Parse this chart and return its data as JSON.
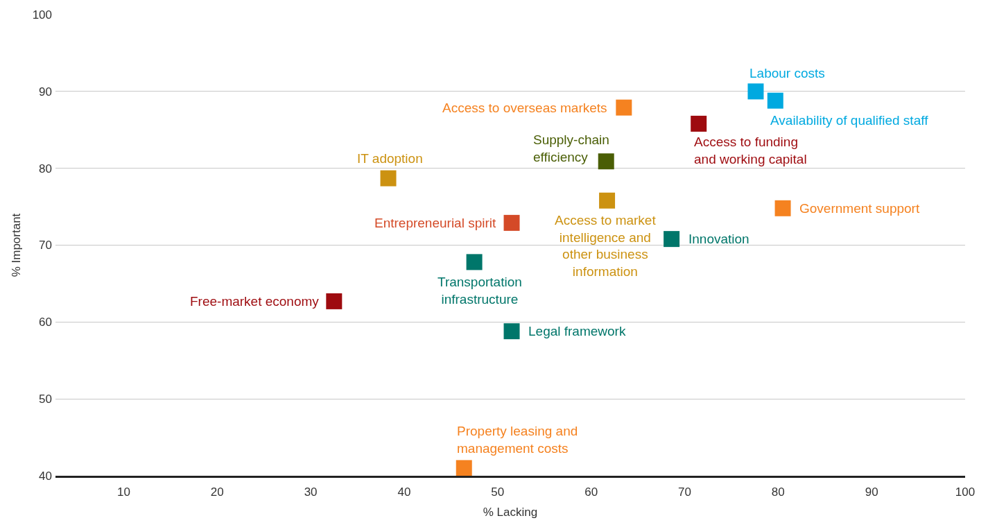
{
  "chart_data": {
    "type": "scatter",
    "xlabel": "% Lacking",
    "ylabel": "% Important",
    "xlim": [
      2.7,
      100
    ],
    "xticks": [
      10,
      20,
      30,
      40,
      50,
      60,
      70,
      80,
      90,
      100
    ],
    "ylim": [
      40,
      100
    ],
    "yticks": [
      40,
      50,
      60,
      70,
      80,
      90,
      100
    ],
    "grid": "y",
    "legend": false,
    "marker": "square",
    "series": [
      {
        "name": "Labour costs",
        "color": "#00a9e0",
        "x": [
          77.6
        ],
        "values": [
          90.0
        ]
      },
      {
        "name": "Availability of qualified staff",
        "color": "#00a9e0",
        "x": [
          79.7
        ],
        "values": [
          88.8
        ]
      },
      {
        "name": "Access to funding and working capital",
        "color": "#9e0b0f",
        "x": [
          71.5
        ],
        "values": [
          85.8
        ]
      },
      {
        "name": "Government support",
        "color": "#f58220",
        "x": [
          80.5
        ],
        "values": [
          74.8
        ]
      },
      {
        "name": "Innovation",
        "color": "#00766a",
        "x": [
          68.6
        ],
        "values": [
          70.8
        ]
      },
      {
        "name": "Access to overseas markets",
        "color": "#f58220",
        "x": [
          63.5
        ],
        "values": [
          87.9
        ]
      },
      {
        "name": "Supply-chain efficiency",
        "color": "#4a5e05",
        "x": [
          61.6
        ],
        "values": [
          80.9
        ]
      },
      {
        "name": "IT adoption",
        "color": "#cc9211",
        "x": [
          38.3
        ],
        "values": [
          78.7
        ]
      },
      {
        "name": "Access to market intelligence and other business information",
        "color": "#cc9211",
        "x": [
          61.7
        ],
        "values": [
          75.8
        ]
      },
      {
        "name": "Entrepreneurial spirit",
        "color": "#d44a27",
        "x": [
          51.5
        ],
        "values": [
          72.9
        ]
      },
      {
        "name": "Transportation infrastructure",
        "color": "#00766a",
        "x": [
          47.5
        ],
        "values": [
          67.8
        ]
      },
      {
        "name": "Free-market economy",
        "color": "#9e0b0f",
        "x": [
          32.5
        ],
        "values": [
          62.7
        ]
      },
      {
        "name": "Legal framework",
        "color": "#00766a",
        "x": [
          51.5
        ],
        "values": [
          58.8
        ]
      },
      {
        "name": "Property leasing and management costs",
        "color": "#f58220",
        "x": [
          46.4
        ],
        "values": [
          41.0
        ]
      }
    ]
  }
}
